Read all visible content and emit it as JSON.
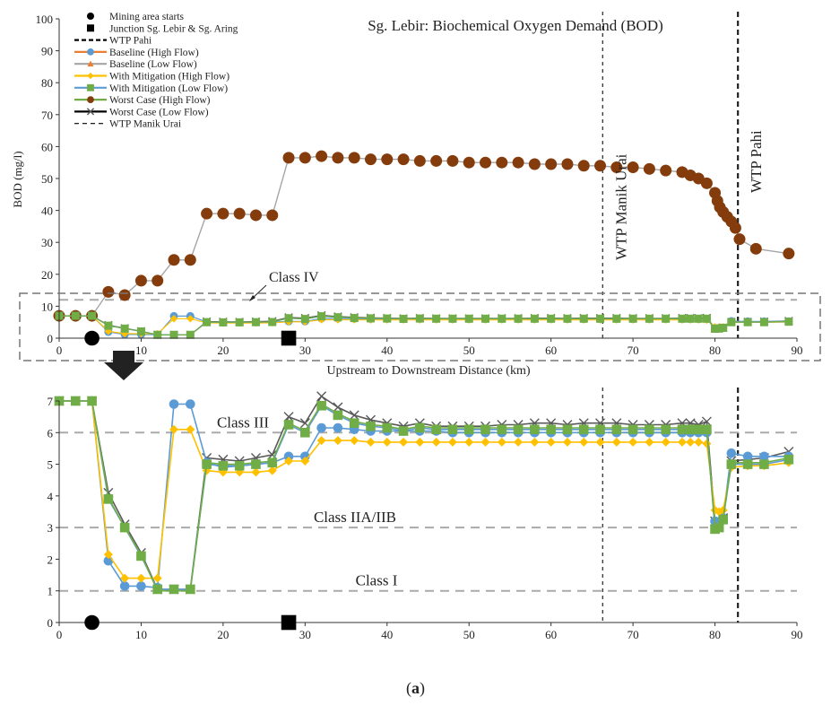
{
  "caption": {
    "open": "(",
    "letter": "a",
    "close": ")"
  },
  "arrow_icon": "down-arrow-icon",
  "class_iv_label": "Class IV",
  "chart_data": [
    {
      "type": "line",
      "title": "Sg. Lebir: Biochemical Oxygen Demand (BOD)",
      "xlabel": "Upstream to Downstream Distance (km)",
      "ylabel": "BOD (mg/l)",
      "xlim": [
        0,
        90
      ],
      "ylim": [
        0,
        100
      ],
      "xticks": [
        0,
        10,
        20,
        30,
        40,
        50,
        60,
        70,
        80,
        90
      ],
      "yticks": [
        0,
        10,
        20,
        30,
        40,
        50,
        60,
        70,
        80,
        90,
        100
      ],
      "grid": false,
      "legend_position": "top-left",
      "vlines": [
        {
          "name": "WTP Manik Urai",
          "x": 66.3,
          "style": "dashed-thin"
        },
        {
          "name": "WTP Pahi",
          "x": 82.8,
          "style": "dashed-thick"
        }
      ],
      "hlines": [
        {
          "name": "Class IV",
          "y": 12
        }
      ],
      "markers": [
        {
          "name": "Mining area starts",
          "x": 4,
          "shape": "circle"
        },
        {
          "name": "Junction Sg. Lebir & Sg. Aring",
          "x": 28,
          "shape": "square"
        }
      ],
      "legend": [
        {
          "name": "Mining area starts",
          "kind": "circle",
          "color": "#000000"
        },
        {
          "name": "Junction Sg. Lebir & Sg. Aring",
          "kind": "square",
          "color": "#000000"
        },
        {
          "name": "WTP Pahi",
          "kind": "dash-thick",
          "color": "#000000"
        },
        {
          "name": "Baseline (High Flow)",
          "kind": "line-circle",
          "color": "#ED7D31",
          "mcolor": "#5B9BD5"
        },
        {
          "name": "Baseline (Low Flow)",
          "kind": "line-triangle",
          "color": "#A5A5A5",
          "mcolor": "#ED7D31"
        },
        {
          "name": "With Mitigation (High Flow)",
          "kind": "line-diamond",
          "color": "#FFC000",
          "mcolor": "#FFC000"
        },
        {
          "name": "With Mitigation (Low Flow)",
          "kind": "line-square",
          "color": "#5B9BD5",
          "mcolor": "#70AD47"
        },
        {
          "name": "Worst Case (High Flow)",
          "kind": "line-circle",
          "color": "#70AD47",
          "mcolor": "#843C0C"
        },
        {
          "name": "Worst Case (Low Flow)",
          "kind": "line-x",
          "color": "#000000",
          "mcolor": "#595959"
        },
        {
          "name": "WTP Manik Urai",
          "kind": "dash-thin",
          "color": "#000000"
        }
      ],
      "series": [
        {
          "name": "Worst Case (High Flow)",
          "color": "#A5A5A5",
          "marker": "circle",
          "mcolor": "#843C0C",
          "x": [
            0,
            2,
            4,
            6,
            8,
            10,
            12,
            14,
            16,
            18,
            20,
            22,
            24,
            26,
            28,
            30,
            32,
            34,
            36,
            38,
            40,
            42,
            44,
            46,
            48,
            50,
            52,
            54,
            56,
            58,
            60,
            62,
            64,
            66,
            68,
            70,
            72,
            74,
            76,
            77,
            78,
            79,
            80,
            80.3,
            80.6,
            81,
            81.5,
            82,
            82.5,
            83,
            85,
            89
          ],
          "y": [
            7,
            7,
            7,
            14.5,
            13.5,
            18,
            18,
            24.5,
            24.5,
            39,
            39,
            39,
            38.5,
            38.5,
            56.5,
            56.5,
            57,
            56.5,
            56.5,
            56,
            56,
            56,
            55.5,
            55.5,
            55.5,
            55,
            55,
            55,
            55,
            54.5,
            54.5,
            54.5,
            54,
            54,
            53.5,
            53.5,
            53,
            52.5,
            52,
            51,
            50,
            48.5,
            45.5,
            43,
            41,
            39.5,
            38,
            36.5,
            34.5,
            31,
            28,
            26.5
          ]
        }
      ]
    },
    {
      "type": "line",
      "xlim": [
        0,
        90
      ],
      "ylim": [
        0,
        7
      ],
      "xticks": [
        0,
        10,
        20,
        30,
        40,
        50,
        60,
        70,
        80,
        90
      ],
      "yticks": [
        0,
        1,
        2,
        3,
        4,
        5,
        6,
        7
      ],
      "grid": false,
      "hlines": [
        {
          "name": "Class III",
          "y": 6
        },
        {
          "name": "Class IIA/IIB",
          "y": 3
        },
        {
          "name": "Class I",
          "y": 1
        }
      ],
      "vlines": [
        {
          "name": "WTP Manik Urai",
          "x": 66.3,
          "style": "dashed-thin"
        },
        {
          "name": "WTP Pahi",
          "x": 82.8,
          "style": "dashed-thick"
        }
      ],
      "markers": [
        {
          "name": "Mining area starts",
          "x": 4,
          "shape": "circle"
        },
        {
          "name": "Junction Sg. Lebir & Sg. Aring",
          "x": 28,
          "shape": "square"
        }
      ],
      "series": [
        {
          "name": "Worst Case (Low Flow)",
          "color": "#595959",
          "marker": "x",
          "mcolor": "#595959",
          "x": [
            0,
            2,
            4,
            6,
            8,
            10,
            12,
            14,
            16,
            18,
            20,
            22,
            24,
            26,
            28,
            30,
            32,
            34,
            36,
            38,
            40,
            42,
            44,
            46,
            48,
            50,
            52,
            54,
            56,
            58,
            60,
            62,
            64,
            66,
            68,
            70,
            72,
            74,
            76,
            77,
            78,
            79,
            80,
            80.5,
            81,
            82,
            84,
            86,
            89
          ],
          "y": [
            7,
            7,
            7,
            4.1,
            3.1,
            2.2,
            1.05,
            1.05,
            1.05,
            5.2,
            5.15,
            5.1,
            5.2,
            5.3,
            6.5,
            6.3,
            7.15,
            6.8,
            6.55,
            6.4,
            6.3,
            6.2,
            6.3,
            6.2,
            6.2,
            6.2,
            6.2,
            6.25,
            6.25,
            6.3,
            6.3,
            6.25,
            6.3,
            6.3,
            6.3,
            6.25,
            6.25,
            6.25,
            6.3,
            6.3,
            6.25,
            6.35,
            3.2,
            3.1,
            3.3,
            5.1,
            5.15,
            5.2,
            5.4
          ]
        },
        {
          "name": "Baseline (High Flow)",
          "color": "#5B9BD5",
          "marker": "circle",
          "mcolor": "#5B9BD5",
          "x": [
            0,
            2,
            4,
            6,
            8,
            10,
            12,
            14,
            16,
            18,
            20,
            22,
            24,
            26,
            28,
            30,
            32,
            34,
            36,
            38,
            40,
            42,
            44,
            46,
            48,
            50,
            52,
            54,
            56,
            58,
            60,
            62,
            64,
            66,
            68,
            70,
            72,
            74,
            76,
            77,
            78,
            79,
            80,
            80.5,
            81,
            82,
            84,
            86,
            89
          ],
          "y": [
            7,
            7,
            7,
            1.95,
            1.15,
            1.15,
            1.1,
            6.9,
            6.9,
            5.05,
            4.9,
            4.95,
            5,
            5.05,
            5.25,
            5.25,
            6.15,
            6.15,
            6.1,
            6.05,
            6.05,
            6.05,
            6.05,
            6.05,
            6.0,
            6.0,
            6.0,
            6.0,
            6.0,
            6.0,
            6.0,
            6.0,
            6.0,
            6.0,
            6.0,
            6.0,
            6.0,
            6.0,
            6.0,
            6.0,
            6.0,
            6.0,
            3.2,
            3.15,
            3.3,
            5.35,
            5.25,
            5.25,
            5.25
          ]
        },
        {
          "name": "With Mitigation (High Flow)",
          "color": "#FFC000",
          "marker": "diamond",
          "mcolor": "#FFC000",
          "x": [
            0,
            2,
            4,
            6,
            8,
            10,
            12,
            14,
            16,
            18,
            20,
            22,
            24,
            26,
            28,
            30,
            32,
            34,
            36,
            38,
            40,
            42,
            44,
            46,
            48,
            50,
            52,
            54,
            56,
            58,
            60,
            62,
            64,
            66,
            68,
            70,
            72,
            74,
            76,
            77,
            78,
            79,
            80,
            80.5,
            81,
            82,
            84,
            86,
            89
          ],
          "y": [
            7,
            7,
            7,
            2.15,
            1.4,
            1.4,
            1.4,
            6.1,
            6.1,
            4.8,
            4.75,
            4.75,
            4.75,
            4.8,
            5.1,
            5.1,
            5.75,
            5.75,
            5.75,
            5.7,
            5.7,
            5.7,
            5.7,
            5.7,
            5.7,
            5.7,
            5.7,
            5.7,
            5.7,
            5.7,
            5.7,
            5.7,
            5.7,
            5.7,
            5.7,
            5.7,
            5.7,
            5.7,
            5.7,
            5.7,
            5.7,
            5.65,
            3.55,
            3.5,
            3.55,
            4.9,
            4.95,
            4.95,
            5.05
          ]
        },
        {
          "name": "With Mitigation (Low Flow)",
          "color": "#5B9BD5",
          "marker": "square",
          "mcolor": "#70AD47",
          "x": [
            0,
            2,
            4,
            6,
            8,
            10,
            12,
            14,
            16,
            18,
            20,
            22,
            24,
            26,
            28,
            30,
            32,
            34,
            36,
            38,
            40,
            42,
            44,
            46,
            48,
            50,
            52,
            54,
            56,
            58,
            60,
            62,
            64,
            66,
            68,
            70,
            72,
            74,
            76,
            77,
            78,
            79,
            80,
            80.5,
            81,
            82,
            84,
            86,
            89
          ],
          "y": [
            7,
            7,
            7,
            3.9,
            3.0,
            2.1,
            1.05,
            1.05,
            1.05,
            5.0,
            4.95,
            4.95,
            5.0,
            5.05,
            6.25,
            6.0,
            6.85,
            6.55,
            6.3,
            6.2,
            6.15,
            6.05,
            6.15,
            6.1,
            6.1,
            6.1,
            6.1,
            6.1,
            6.1,
            6.1,
            6.1,
            6.1,
            6.1,
            6.1,
            6.1,
            6.1,
            6.1,
            6.1,
            6.1,
            6.1,
            6.1,
            6.1,
            2.95,
            3.0,
            3.25,
            5.0,
            5.0,
            5.0,
            5.15
          ]
        },
        {
          "name": "Worst Case (High Flow)",
          "color": "#70AD47",
          "marker": "none",
          "mcolor": "#70AD47",
          "x": [
            0,
            2,
            4,
            6,
            8,
            10,
            12,
            14,
            16,
            18,
            20,
            22,
            24,
            26,
            28,
            30,
            32,
            34,
            36,
            38,
            40,
            42,
            44,
            46,
            48,
            50,
            52,
            54,
            56,
            58,
            60,
            62,
            64,
            66,
            68,
            70,
            72,
            74,
            76,
            77,
            78,
            79,
            80,
            80.5,
            81,
            82,
            84,
            86,
            89
          ],
          "y": [
            7,
            7,
            7,
            3.95,
            3.0,
            2.15,
            1.0,
            1.0,
            1.0,
            5.05,
            5.0,
            5.0,
            5.05,
            5.1,
            6.3,
            6.05,
            6.9,
            6.6,
            6.35,
            6.25,
            6.2,
            6.1,
            6.2,
            6.15,
            6.15,
            6.15,
            6.15,
            6.15,
            6.15,
            6.15,
            6.15,
            6.15,
            6.15,
            6.15,
            6.15,
            6.15,
            6.15,
            6.15,
            6.15,
            6.15,
            6.15,
            6.15,
            3.0,
            3.05,
            3.3,
            5.05,
            5.05,
            5.05,
            5.2
          ]
        }
      ]
    }
  ]
}
